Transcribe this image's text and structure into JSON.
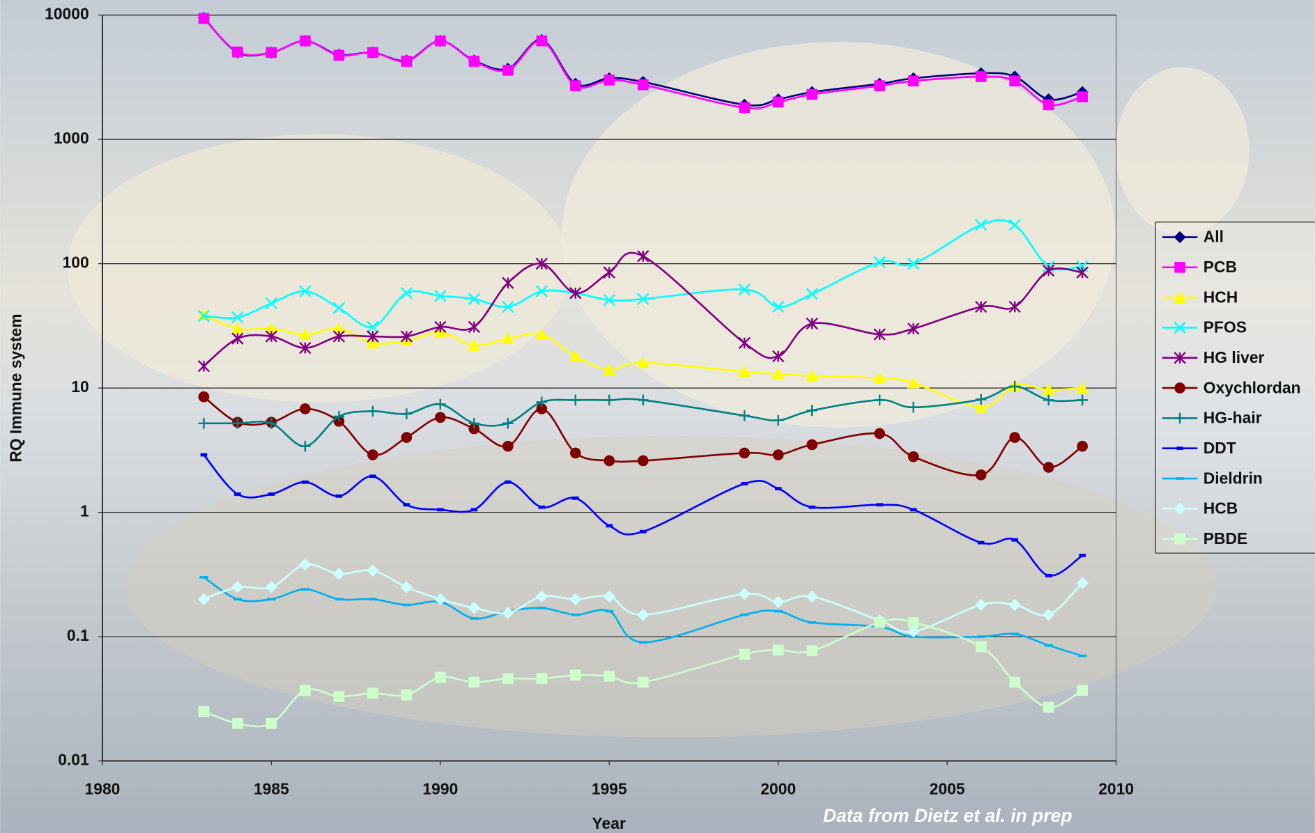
{
  "chart_data": {
    "type": "line",
    "ylog": true,
    "grid": true,
    "legend": "right",
    "x_label": "Year",
    "y_label": "RQ Immune system",
    "annotation": "Data from Dietz et al. in prep",
    "xlim": [
      1980,
      2010
    ],
    "xticks": [
      1980,
      1985,
      1990,
      1995,
      2000,
      2005,
      2010
    ],
    "ylim": [
      0.01,
      10000
    ],
    "yticks": [
      0.01,
      0.1,
      1,
      10,
      100,
      1000,
      10000
    ],
    "x": [
      1983,
      1984,
      1985,
      1986,
      1987,
      1988,
      1989,
      1990,
      1991,
      1992,
      1993,
      1994,
      1995,
      1996,
      1999,
      2000,
      2001,
      2003,
      2004,
      2006,
      2007,
      2008,
      2009
    ],
    "series": [
      {
        "name": "All",
        "color": "#000080",
        "marker": "diamond",
        "values": [
          9500,
          5000,
          5000,
          6200,
          4800,
          5000,
          4300,
          6200,
          4300,
          3700,
          6300,
          2800,
          3100,
          2900,
          1900,
          2100,
          2400,
          2800,
          3100,
          3400,
          3200,
          2100,
          2400
        ]
      },
      {
        "name": "PCB",
        "color": "#ff00ff",
        "marker": "square",
        "values": [
          9400,
          5050,
          5000,
          6200,
          4750,
          5000,
          4250,
          6200,
          4250,
          3600,
          6200,
          2700,
          3000,
          2750,
          1800,
          2000,
          2300,
          2700,
          2950,
          3200,
          2950,
          1900,
          2200
        ]
      },
      {
        "name": "HCH",
        "color": "#ffff00",
        "marker": "triangle",
        "values": [
          39,
          30,
          30,
          27,
          30,
          23,
          24,
          28,
          22,
          25,
          27,
          18,
          14,
          16,
          13.5,
          13,
          12.5,
          12,
          11,
          7,
          10.5,
          9.7,
          10
        ]
      },
      {
        "name": "PFOS",
        "color": "#00ffff",
        "marker": "x",
        "values": [
          38,
          37,
          48,
          60,
          44,
          31,
          58,
          55,
          52,
          45,
          60,
          58,
          51,
          52,
          62,
          45,
          57,
          103,
          100,
          205,
          205,
          95,
          95
        ]
      },
      {
        "name": "HG liver",
        "color": "#800080",
        "marker": "star",
        "values": [
          15,
          25,
          26,
          21,
          26,
          26,
          26,
          31,
          31,
          70,
          100,
          58,
          85,
          115,
          23,
          18,
          33,
          27,
          30,
          45,
          45,
          88,
          85
        ]
      },
      {
        "name": "Oxychlordan",
        "color": "#800000",
        "marker": "circle",
        "values": [
          8.5,
          5.3,
          5.3,
          6.8,
          5.4,
          2.9,
          4.0,
          5.8,
          4.7,
          3.4,
          6.8,
          3.0,
          2.6,
          2.6,
          3.0,
          2.9,
          3.5,
          4.3,
          2.8,
          2.0,
          4.0,
          2.3,
          3.4
        ]
      },
      {
        "name": "HG-hair",
        "color": "#008080",
        "marker": "plus",
        "values": [
          5.2,
          5.2,
          5.2,
          3.4,
          5.9,
          6.5,
          6.2,
          7.4,
          5.2,
          5.2,
          7.7,
          8,
          8,
          8,
          6,
          5.5,
          6.6,
          8,
          7,
          8.1,
          10.3,
          8,
          8
        ]
      },
      {
        "name": "DDT",
        "color": "#0000ff",
        "marker": "dash",
        "values": [
          2.9,
          1.4,
          1.4,
          1.75,
          1.35,
          1.95,
          1.15,
          1.05,
          1.05,
          1.75,
          1.1,
          1.3,
          0.78,
          0.7,
          1.7,
          1.55,
          1.1,
          1.15,
          1.05,
          0.57,
          0.6,
          0.31,
          0.45
        ]
      },
      {
        "name": "Dieldrin",
        "color": "#00b0f0",
        "marker": "bar",
        "values": [
          0.3,
          0.2,
          0.2,
          0.24,
          0.2,
          0.2,
          0.18,
          0.19,
          0.14,
          0.16,
          0.17,
          0.15,
          0.16,
          0.09,
          0.15,
          0.16,
          0.13,
          0.12,
          0.1,
          0.1,
          0.105,
          0.085,
          0.07
        ]
      },
      {
        "name": "HCB",
        "color": "#ccffff",
        "marker": "diamond",
        "values": [
          0.2,
          0.25,
          0.25,
          0.38,
          0.32,
          0.34,
          0.25,
          0.2,
          0.17,
          0.155,
          0.21,
          0.2,
          0.21,
          0.15,
          0.22,
          0.19,
          0.21,
          0.135,
          0.11,
          0.18,
          0.18,
          0.15,
          0.27
        ]
      },
      {
        "name": "PBDE",
        "color": "#ccffcc",
        "marker": "square",
        "values": [
          0.025,
          0.02,
          0.02,
          0.037,
          0.033,
          0.035,
          0.034,
          0.047,
          0.043,
          0.046,
          0.046,
          0.049,
          0.048,
          0.043,
          0.072,
          0.078,
          0.077,
          0.13,
          0.13,
          0.083,
          0.043,
          0.027,
          0.037
        ]
      }
    ]
  }
}
